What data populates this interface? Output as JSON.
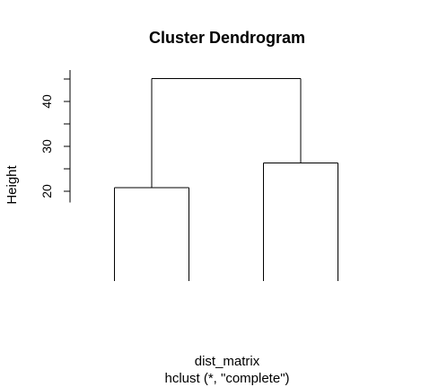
{
  "chart_data": {
    "type": "dendrogram",
    "title": "Cluster Dendrogram",
    "xlabel": "dist_matrix",
    "sublabel": "hclust (*, \"complete\")",
    "ylabel": "Height",
    "ylim": [
      0,
      45.1
    ],
    "y_axis_range": [
      17.5,
      47
    ],
    "y_ticks": [
      20,
      25,
      30,
      35,
      40,
      45
    ],
    "y_tick_labels": [
      "20",
      "",
      "30",
      "",
      "40",
      ""
    ],
    "leaf_count": 4,
    "merges": [
      {
        "left": 1,
        "right": 2,
        "height": 20.8
      },
      {
        "left": 3,
        "right": 4,
        "height": 26.3
      },
      {
        "left": "merge-1",
        "right": "merge-2",
        "height": 45.1
      }
    ],
    "grid": false,
    "legend": "none"
  }
}
